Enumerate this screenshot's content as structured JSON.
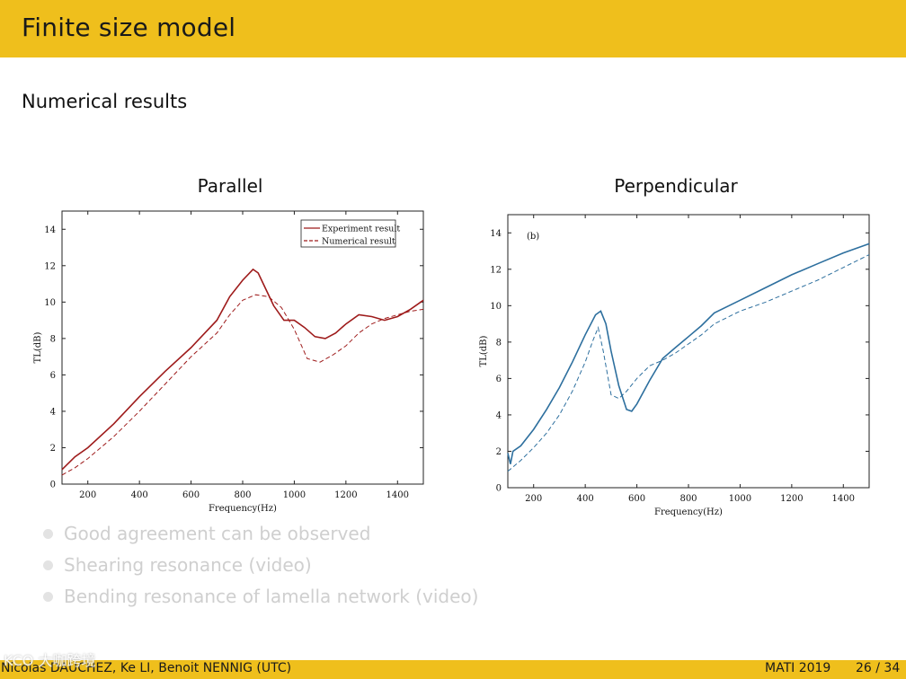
{
  "slide": {
    "title": "Finite size model",
    "section_heading": "Numerical results"
  },
  "figures": {
    "left_title": "Parallel",
    "right_title": "Perpendicular"
  },
  "bullets": [
    "Good agreement can be observed",
    "Shearing resonance (video)",
    "Bending resonance of lamella network (video)"
  ],
  "footer": {
    "authors": "Nicolas DAUCHEZ, Ke LI, Benoit NENNIG  (UTC)",
    "conference": "MATI 2019",
    "page": "26 / 34"
  },
  "watermark": "KCO 大咖跨境",
  "colors": {
    "bar": "#efbf1c",
    "experiment_parallel": "#9e1b1b",
    "experiment_perpendicular": "#2d6f9e"
  },
  "chart_data": [
    {
      "type": "line",
      "title": "Parallel",
      "xlabel": "Frequency(Hz)",
      "ylabel": "TL(dB)",
      "xlim": [
        100,
        1500
      ],
      "ylim": [
        0,
        15
      ],
      "xticks": [
        200,
        400,
        600,
        800,
        1000,
        1200,
        1400
      ],
      "yticks": [
        0,
        2,
        4,
        6,
        8,
        10,
        12,
        14
      ],
      "legend": [
        "Experiment result",
        "Numerical result"
      ],
      "legend_position": "top-right",
      "annotation": "",
      "series": [
        {
          "name": "Experiment result",
          "style": "solid",
          "color": "#9e1b1b",
          "x": [
            100,
            150,
            200,
            300,
            400,
            500,
            600,
            700,
            750,
            800,
            840,
            860,
            880,
            920,
            960,
            1000,
            1040,
            1080,
            1120,
            1160,
            1200,
            1250,
            1300,
            1350,
            1400,
            1450,
            1500
          ],
          "y": [
            0.8,
            1.5,
            2.0,
            3.3,
            4.8,
            6.2,
            7.5,
            9.0,
            10.3,
            11.2,
            11.8,
            11.6,
            11.0,
            9.8,
            9.0,
            9.0,
            8.6,
            8.1,
            8.0,
            8.3,
            8.8,
            9.3,
            9.2,
            9.0,
            9.2,
            9.6,
            10.1
          ]
        },
        {
          "name": "Numerical result",
          "style": "dashed",
          "color": "#9e1b1b",
          "x": [
            100,
            150,
            200,
            300,
            400,
            500,
            600,
            700,
            750,
            800,
            850,
            900,
            950,
            1000,
            1050,
            1100,
            1150,
            1200,
            1250,
            1300,
            1350,
            1400,
            1450,
            1500
          ],
          "y": [
            0.5,
            0.9,
            1.4,
            2.6,
            4.0,
            5.5,
            7.0,
            8.3,
            9.3,
            10.1,
            10.4,
            10.3,
            9.7,
            8.5,
            6.9,
            6.7,
            7.1,
            7.6,
            8.3,
            8.8,
            9.1,
            9.3,
            9.5,
            9.6
          ]
        }
      ]
    },
    {
      "type": "line",
      "title": "Perpendicular",
      "xlabel": "Frequency(Hz)",
      "ylabel": "TL(dB)",
      "xlim": [
        100,
        1500
      ],
      "ylim": [
        0,
        15
      ],
      "xticks": [
        200,
        400,
        600,
        800,
        1000,
        1200,
        1400
      ],
      "yticks": [
        0,
        2,
        4,
        6,
        8,
        10,
        12,
        14
      ],
      "legend": [],
      "annotation": "(b)",
      "series": [
        {
          "name": "Experiment result",
          "style": "solid",
          "color": "#2d6f9e",
          "x": [
            100,
            110,
            120,
            150,
            200,
            250,
            300,
            350,
            400,
            440,
            460,
            480,
            500,
            530,
            560,
            580,
            600,
            650,
            700,
            750,
            800,
            850,
            900,
            1000,
            1100,
            1200,
            1300,
            1400,
            1500
          ],
          "y": [
            1.9,
            1.3,
            2.0,
            2.3,
            3.2,
            4.3,
            5.5,
            6.9,
            8.4,
            9.5,
            9.7,
            9.0,
            7.5,
            5.6,
            4.3,
            4.2,
            4.6,
            5.9,
            7.1,
            7.7,
            8.3,
            8.9,
            9.6,
            10.3,
            11.0,
            11.7,
            12.3,
            12.9,
            13.4
          ]
        },
        {
          "name": "Numerical result",
          "style": "dashed",
          "color": "#2d6f9e",
          "x": [
            100,
            150,
            200,
            250,
            300,
            350,
            400,
            430,
            450,
            470,
            500,
            530,
            560,
            600,
            650,
            700,
            750,
            800,
            850,
            900,
            1000,
            1100,
            1200,
            1300,
            1400,
            1500
          ],
          "y": [
            0.9,
            1.5,
            2.2,
            3.0,
            4.0,
            5.3,
            6.9,
            8.1,
            8.8,
            7.5,
            5.1,
            4.9,
            5.3,
            6.0,
            6.7,
            7.0,
            7.4,
            7.9,
            8.4,
            9.0,
            9.7,
            10.2,
            10.8,
            11.4,
            12.1,
            12.8
          ]
        }
      ]
    }
  ]
}
